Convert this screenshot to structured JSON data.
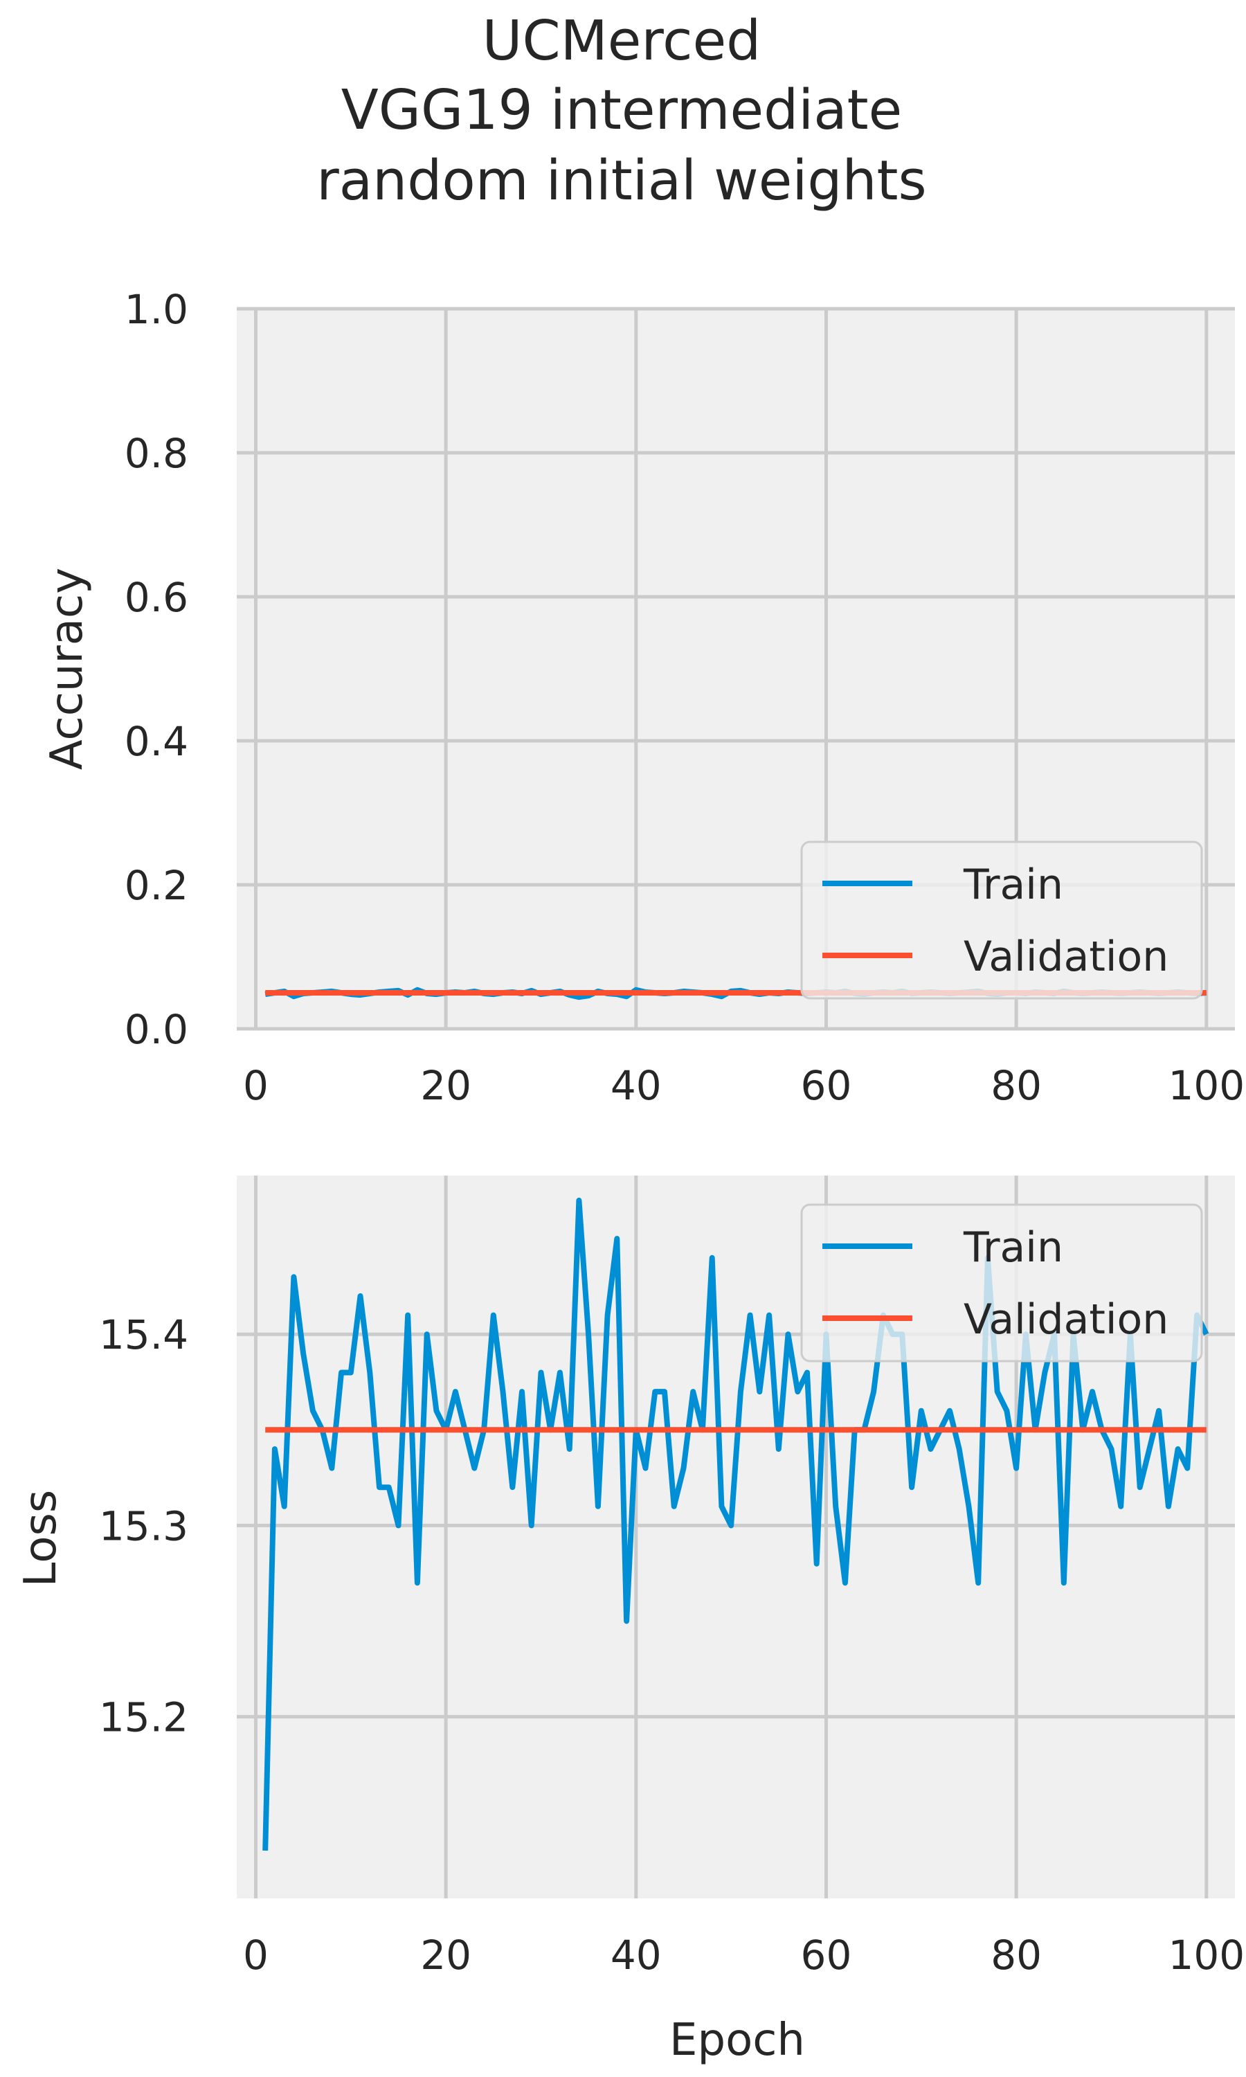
{
  "title_lines": [
    "UCMerced",
    "VGG19 intermediate",
    "random initial weights"
  ],
  "colors": {
    "train": "#008fd5",
    "validation": "#fc4f30",
    "panel_bg": "#f0f0f0",
    "grid": "#cbcbcb",
    "text": "#262626"
  },
  "chart_data": [
    {
      "type": "line",
      "title": "",
      "xlabel": "",
      "ylabel": "Accuracy",
      "xlim": [
        -2,
        103
      ],
      "ylim": [
        0.0,
        1.0
      ],
      "xticks": [
        0,
        20,
        40,
        60,
        80,
        100
      ],
      "xtick_labels": [
        "0",
        "20",
        "40",
        "60",
        "80",
        "100"
      ],
      "yticks": [
        0.0,
        0.2,
        0.4,
        0.6,
        0.8,
        1.0
      ],
      "ytick_labels": [
        "0.0",
        "0.2",
        "0.4",
        "0.6",
        "0.8",
        "1.0"
      ],
      "grid": true,
      "legend": "lower right",
      "x_start": 1,
      "series": [
        {
          "name": "Train",
          "color": "#008fd5",
          "values": [
            0.048,
            0.05,
            0.052,
            0.045,
            0.049,
            0.05,
            0.051,
            0.052,
            0.05,
            0.048,
            0.047,
            0.049,
            0.051,
            0.052,
            0.053,
            0.047,
            0.054,
            0.049,
            0.048,
            0.05,
            0.051,
            0.05,
            0.052,
            0.049,
            0.048,
            0.05,
            0.051,
            0.049,
            0.053,
            0.048,
            0.05,
            0.052,
            0.047,
            0.044,
            0.046,
            0.052,
            0.049,
            0.048,
            0.045,
            0.054,
            0.051,
            0.05,
            0.049,
            0.05,
            0.052,
            0.051,
            0.05,
            0.048,
            0.045,
            0.052,
            0.053,
            0.05,
            0.048,
            0.05,
            0.049,
            0.051,
            0.05,
            0.049,
            0.05,
            0.051,
            0.05,
            0.052,
            0.049,
            0.048,
            0.05,
            0.051,
            0.05,
            0.052,
            0.049,
            0.05,
            0.051,
            0.05,
            0.049,
            0.05,
            0.051,
            0.052,
            0.049,
            0.048,
            0.05,
            0.05,
            0.049,
            0.051,
            0.05,
            0.049,
            0.052,
            0.05,
            0.049,
            0.05,
            0.051,
            0.05,
            0.049,
            0.05,
            0.051,
            0.05,
            0.049,
            0.05,
            0.051,
            0.05,
            0.049,
            0.05
          ]
        },
        {
          "name": "Validation",
          "color": "#fc4f30",
          "values": [
            0.05,
            0.05,
            0.05,
            0.05,
            0.05,
            0.05,
            0.05,
            0.05,
            0.05,
            0.05,
            0.05,
            0.05,
            0.05,
            0.05,
            0.05,
            0.05,
            0.05,
            0.05,
            0.05,
            0.05,
            0.05,
            0.05,
            0.05,
            0.05,
            0.05,
            0.05,
            0.05,
            0.05,
            0.05,
            0.05,
            0.05,
            0.05,
            0.05,
            0.05,
            0.05,
            0.05,
            0.05,
            0.05,
            0.05,
            0.05,
            0.05,
            0.05,
            0.05,
            0.05,
            0.05,
            0.05,
            0.05,
            0.05,
            0.05,
            0.05,
            0.05,
            0.05,
            0.05,
            0.05,
            0.05,
            0.05,
            0.05,
            0.05,
            0.05,
            0.05,
            0.05,
            0.05,
            0.05,
            0.05,
            0.05,
            0.05,
            0.05,
            0.05,
            0.05,
            0.05,
            0.05,
            0.05,
            0.05,
            0.05,
            0.05,
            0.05,
            0.05,
            0.05,
            0.05,
            0.05,
            0.05,
            0.05,
            0.05,
            0.05,
            0.05,
            0.05,
            0.05,
            0.05,
            0.05,
            0.05,
            0.05,
            0.05,
            0.05,
            0.05,
            0.05,
            0.05,
            0.05,
            0.05,
            0.05,
            0.05
          ]
        }
      ]
    },
    {
      "type": "line",
      "title": "",
      "xlabel": "Epoch",
      "ylabel": "Loss",
      "xlim": [
        -2,
        103
      ],
      "ylim": [
        15.105,
        15.483
      ],
      "xticks": [
        0,
        20,
        40,
        60,
        80,
        100
      ],
      "xtick_labels": [
        "0",
        "20",
        "40",
        "60",
        "80",
        "100"
      ],
      "yticks": [
        15.2,
        15.3,
        15.4
      ],
      "ytick_labels": [
        "15.2",
        "15.3",
        "15.4"
      ],
      "grid": true,
      "legend": "upper right",
      "x_start": 1,
      "series": [
        {
          "name": "Train",
          "color": "#008fd5",
          "values": [
            15.13,
            15.34,
            15.31,
            15.43,
            15.39,
            15.36,
            15.35,
            15.33,
            15.38,
            15.38,
            15.42,
            15.38,
            15.32,
            15.32,
            15.3,
            15.41,
            15.27,
            15.4,
            15.36,
            15.35,
            15.37,
            15.35,
            15.33,
            15.35,
            15.41,
            15.37,
            15.32,
            15.37,
            15.3,
            15.38,
            15.35,
            15.38,
            15.34,
            15.47,
            15.4,
            15.31,
            15.41,
            15.45,
            15.25,
            15.35,
            15.33,
            15.37,
            15.37,
            15.31,
            15.33,
            15.37,
            15.35,
            15.44,
            15.31,
            15.3,
            15.37,
            15.41,
            15.37,
            15.41,
            15.34,
            15.4,
            15.37,
            15.38,
            15.28,
            15.4,
            15.31,
            15.27,
            15.35,
            15.35,
            15.37,
            15.41,
            15.4,
            15.4,
            15.32,
            15.36,
            15.34,
            15.35,
            15.36,
            15.34,
            15.31,
            15.27,
            15.44,
            15.37,
            15.36,
            15.33,
            15.4,
            15.35,
            15.38,
            15.4,
            15.27,
            15.4,
            15.35,
            15.37,
            15.35,
            15.34,
            15.31,
            15.4,
            15.32,
            15.34,
            15.36,
            15.31,
            15.34,
            15.33,
            15.41,
            15.4
          ]
        },
        {
          "name": "Validation",
          "color": "#fc4f30",
          "values": [
            15.35,
            15.35,
            15.35,
            15.35,
            15.35,
            15.35,
            15.35,
            15.35,
            15.35,
            15.35,
            15.35,
            15.35,
            15.35,
            15.35,
            15.35,
            15.35,
            15.35,
            15.35,
            15.35,
            15.35,
            15.35,
            15.35,
            15.35,
            15.35,
            15.35,
            15.35,
            15.35,
            15.35,
            15.35,
            15.35,
            15.35,
            15.35,
            15.35,
            15.35,
            15.35,
            15.35,
            15.35,
            15.35,
            15.35,
            15.35,
            15.35,
            15.35,
            15.35,
            15.35,
            15.35,
            15.35,
            15.35,
            15.35,
            15.35,
            15.35,
            15.35,
            15.35,
            15.35,
            15.35,
            15.35,
            15.35,
            15.35,
            15.35,
            15.35,
            15.35,
            15.35,
            15.35,
            15.35,
            15.35,
            15.35,
            15.35,
            15.35,
            15.35,
            15.35,
            15.35,
            15.35,
            15.35,
            15.35,
            15.35,
            15.35,
            15.35,
            15.35,
            15.35,
            15.35,
            15.35,
            15.35,
            15.35,
            15.35,
            15.35,
            15.35,
            15.35,
            15.35,
            15.35,
            15.35,
            15.35,
            15.35,
            15.35,
            15.35,
            15.35,
            15.35,
            15.35,
            15.35,
            15.35,
            15.35,
            15.35
          ]
        }
      ]
    }
  ]
}
